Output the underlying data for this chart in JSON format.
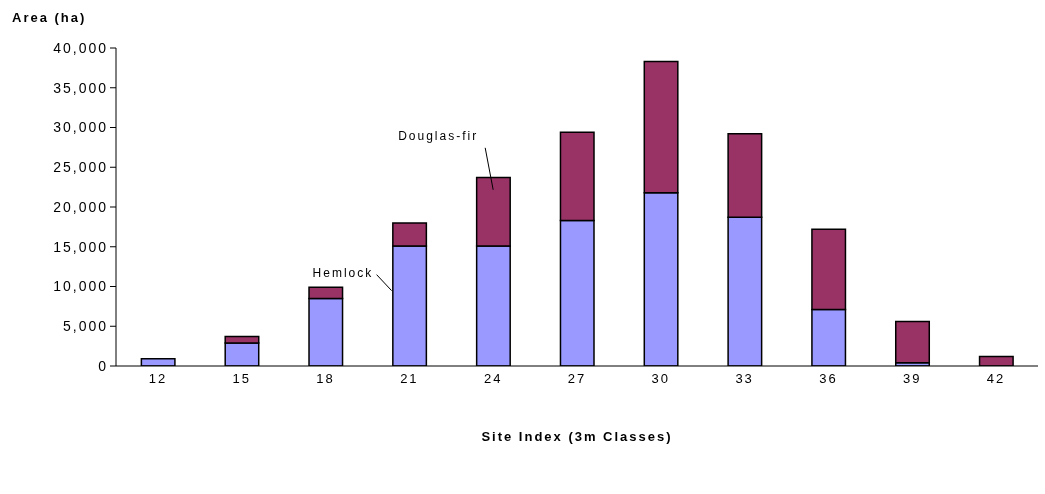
{
  "chart_data": {
    "type": "bar",
    "stacked": true,
    "xlabel": "Site Index (3m Classes)",
    "ylabel": "Area (ha)",
    "categories": [
      "12",
      "15",
      "18",
      "21",
      "24",
      "27",
      "30",
      "33",
      "36",
      "39",
      "42"
    ],
    "series": [
      {
        "name": "Hemlock",
        "color": "#9999ff",
        "values": [
          900,
          2900,
          8500,
          15100,
          15100,
          18300,
          21800,
          18700,
          7100,
          400,
          0
        ]
      },
      {
        "name": "Douglas-fir",
        "color": "#993366",
        "values": [
          0,
          800,
          1400,
          2900,
          8600,
          11100,
          16500,
          10500,
          10100,
          5200,
          1200
        ]
      }
    ],
    "ylim": [
      0,
      40000
    ],
    "yticks": [
      {
        "value": 0,
        "label": "0"
      },
      {
        "value": 5000,
        "label": "5,000"
      },
      {
        "value": 10000,
        "label": "10,000"
      },
      {
        "value": 15000,
        "label": "15,000"
      },
      {
        "value": 20000,
        "label": "20,000"
      },
      {
        "value": 25000,
        "label": "25,000"
      },
      {
        "value": 30000,
        "label": "30,000"
      },
      {
        "value": 35000,
        "label": "35,000"
      },
      {
        "value": 40000,
        "label": "40,000"
      }
    ],
    "grid": false,
    "legend": false
  }
}
